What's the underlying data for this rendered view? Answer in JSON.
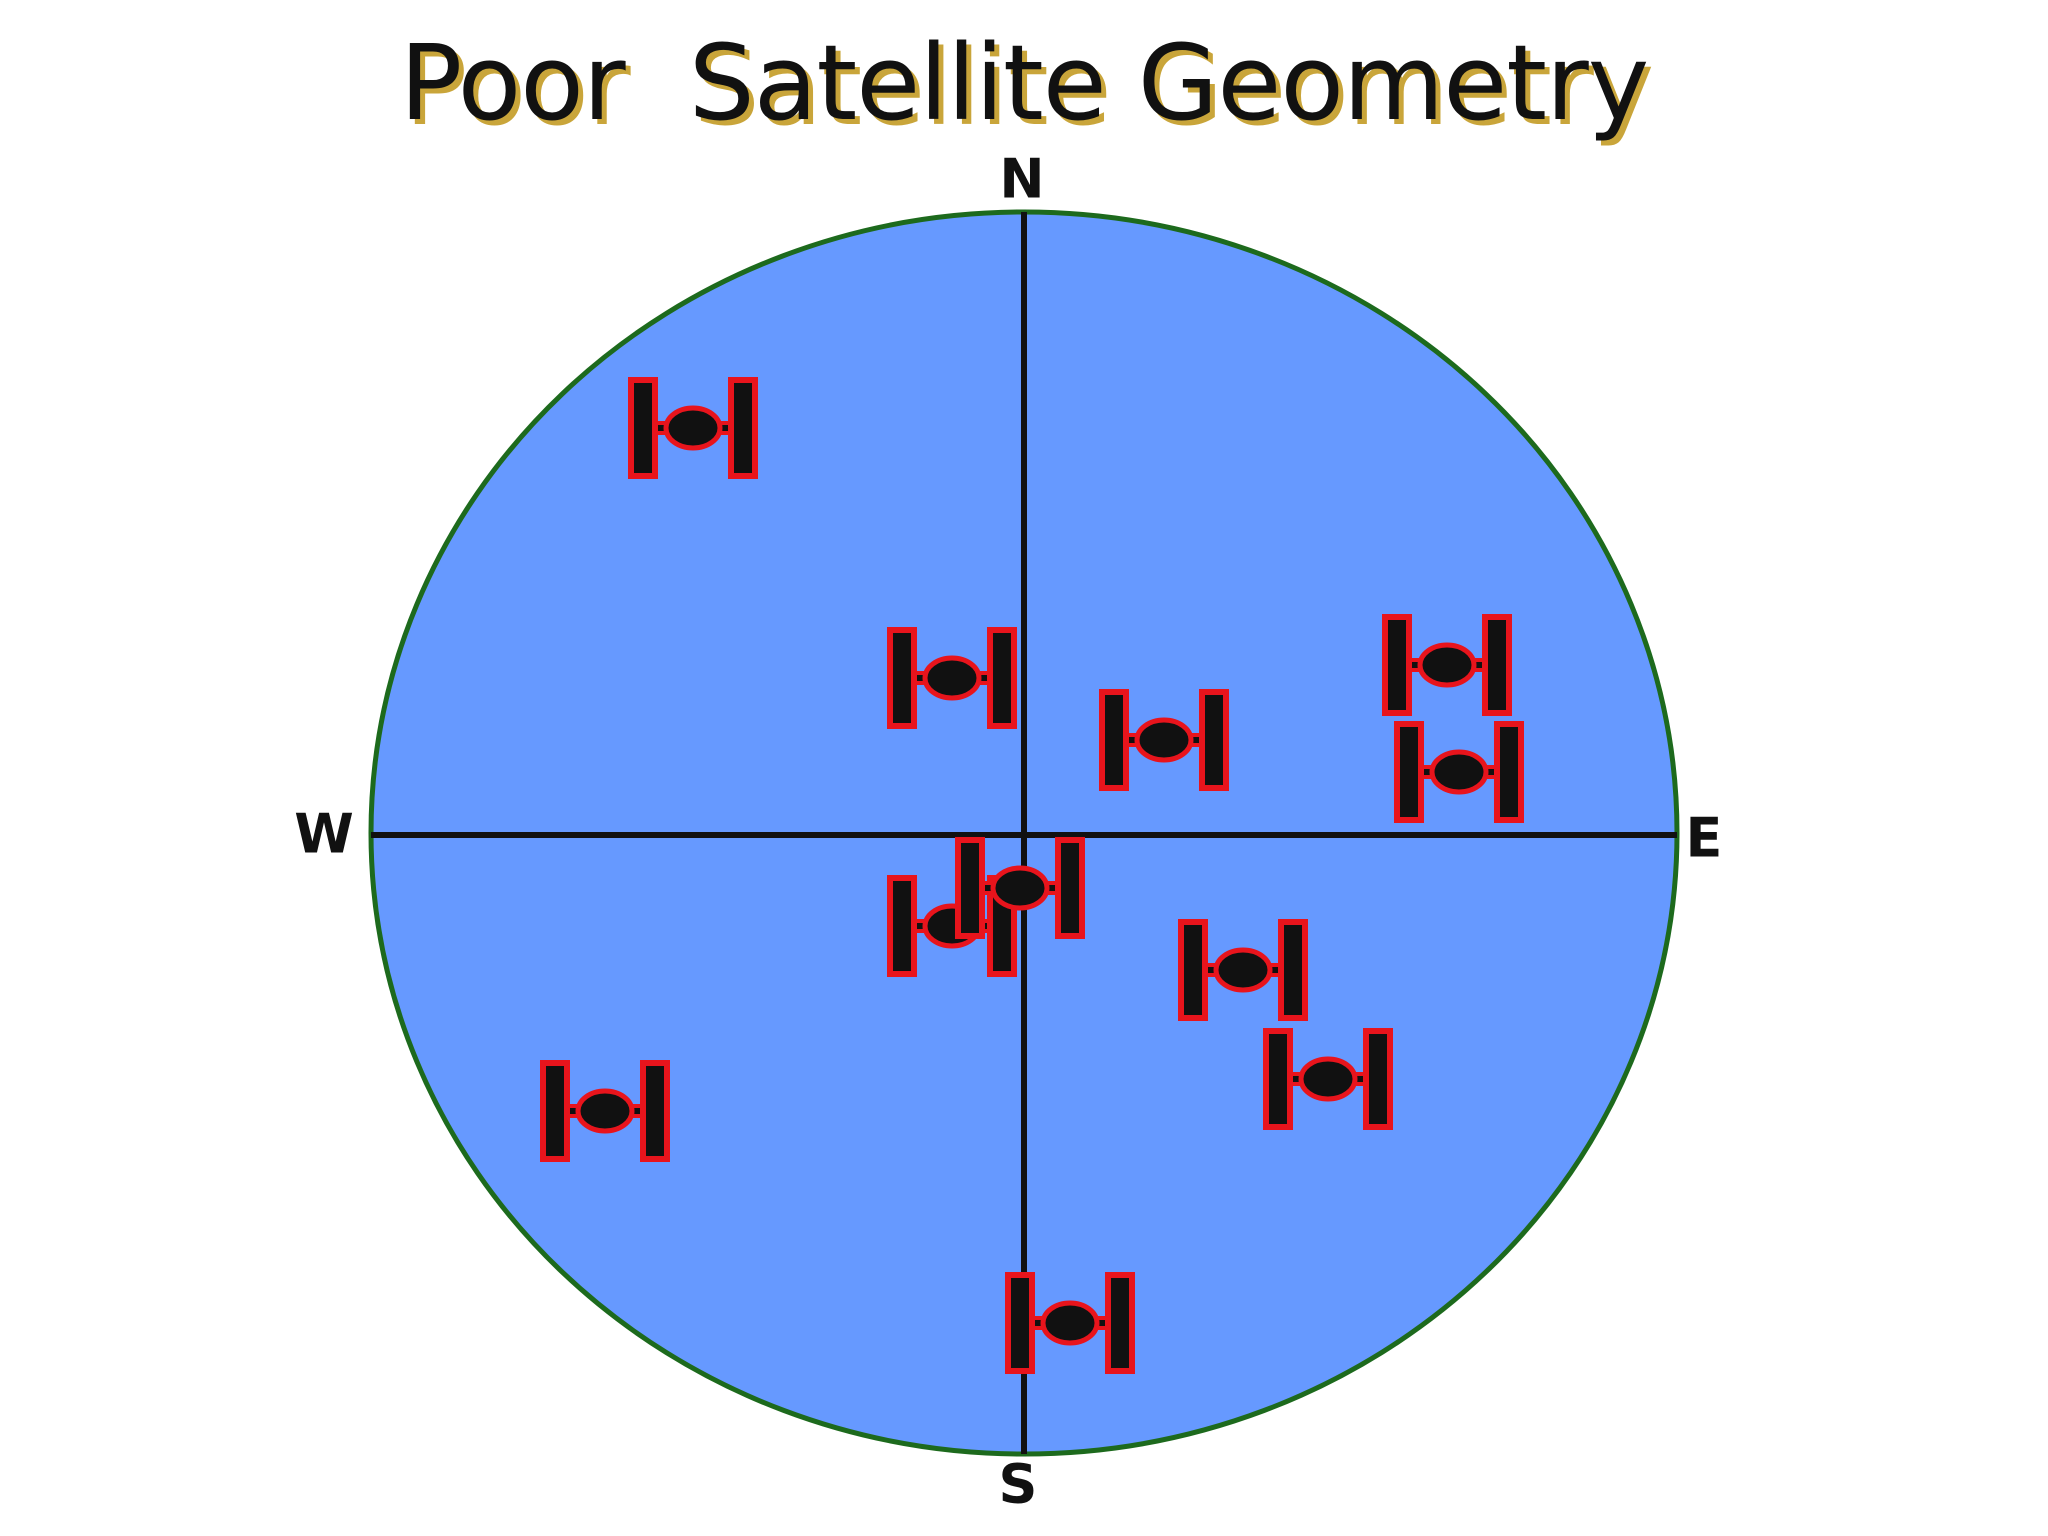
{
  "title": "Poor  Satellite Geometry",
  "directions": {
    "north": "N",
    "south": "S",
    "west": "W",
    "east": "E"
  }
}
